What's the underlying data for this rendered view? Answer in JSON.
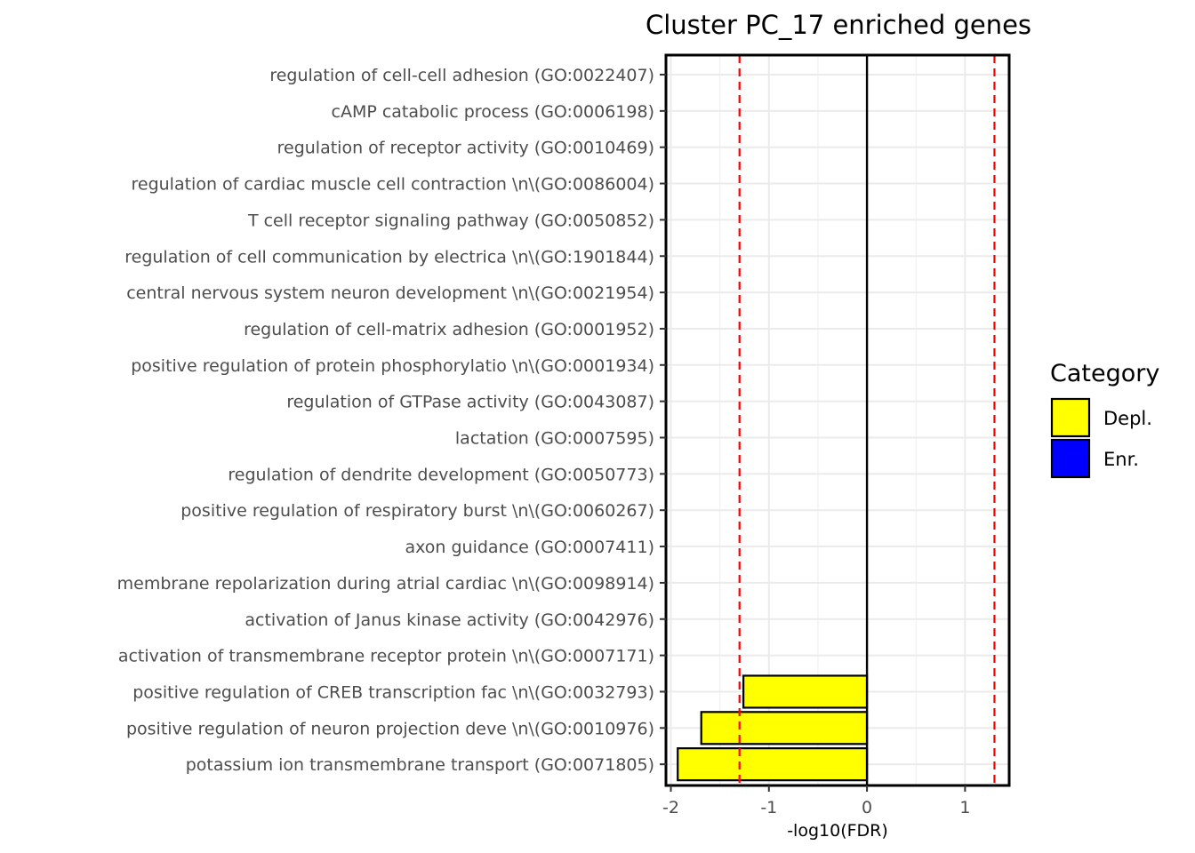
{
  "chart_data": {
    "type": "bar",
    "orientation": "horizontal",
    "title": "Cluster PC_17 enriched genes",
    "xlabel": "-log10(FDR)",
    "ylabel": "",
    "xlim": [
      -2.05,
      1.45
    ],
    "xticks": [
      -2,
      -1,
      0,
      1
    ],
    "xtick_labels": [
      "-2",
      "-1",
      "0",
      "1"
    ],
    "grid": true,
    "reference_lines": [
      {
        "value": -1.3,
        "color": "#ff0000",
        "style": "dashed"
      },
      {
        "value": 1.3,
        "color": "#ff0000",
        "style": "dashed"
      },
      {
        "value": 0,
        "color": "#000000",
        "style": "solid"
      }
    ],
    "categories": [
      "regulation of cell-cell adhesion (GO:0022407)",
      "cAMP catabolic process (GO:0006198)",
      "regulation of receptor activity (GO:0010469)",
      "regulation of cardiac muscle cell contraction \\n\\(GO:0086004)",
      "T cell receptor signaling pathway (GO:0050852)",
      "regulation of cell communication by electrica \\n\\(GO:1901844)",
      "central nervous system neuron development  \\n\\(GO:0021954)",
      "regulation of cell-matrix adhesion (GO:0001952)",
      "positive regulation of protein phosphorylatio \\n\\(GO:0001934)",
      "regulation of GTPase activity (GO:0043087)",
      "lactation (GO:0007595)",
      "regulation of dendrite development (GO:0050773)",
      "positive regulation of respiratory burst  \\n\\(GO:0060267)",
      "axon guidance (GO:0007411)",
      "membrane repolarization during atrial cardiac \\n\\(GO:0098914)",
      "activation of Janus kinase activity (GO:0042976)",
      "activation of transmembrane receptor protein  \\n\\(GO:0007171)",
      "positive regulation of CREB transcription fac \\n\\(GO:0032793)",
      "positive regulation of neuron projection deve \\n\\(GO:0010976)",
      "potassium ion transmembrane transport (GO:0071805)"
    ],
    "series": [
      {
        "name": "Depl.",
        "color": "#ffff00",
        "values": [
          0,
          0,
          0,
          0,
          0,
          0,
          0,
          0,
          0,
          0,
          0,
          0,
          0,
          0,
          0,
          0,
          0,
          -1.26,
          -1.69,
          -1.93
        ]
      },
      {
        "name": "Enr.",
        "color": "#0000ff",
        "values": [
          0,
          0,
          0,
          0,
          0,
          0,
          0,
          0,
          0,
          0,
          0,
          0,
          0,
          0,
          0,
          0,
          0,
          0,
          0,
          0
        ]
      }
    ],
    "legend": {
      "title": "Category",
      "position": "right",
      "items": [
        {
          "label": "Depl.",
          "color": "#ffff00"
        },
        {
          "label": "Enr.",
          "color": "#0000ff"
        }
      ]
    }
  }
}
